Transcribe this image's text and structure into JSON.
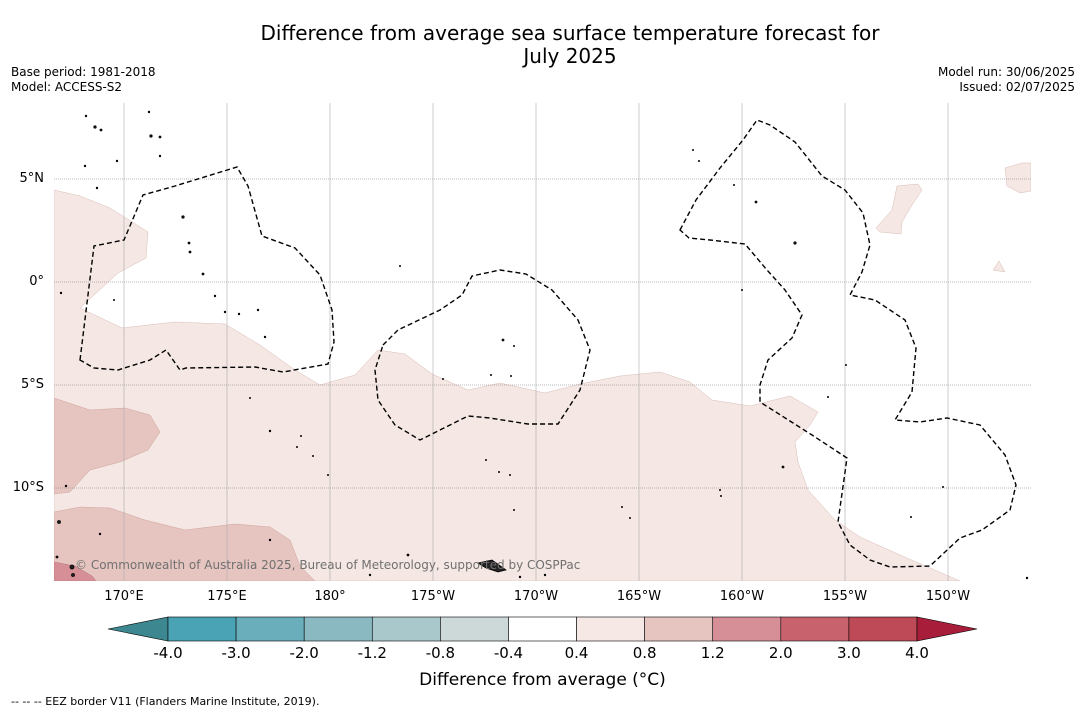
{
  "header": {
    "title_line1": "Difference from average sea surface temperature forecast for",
    "title_line2": "July 2025",
    "base_period": "Base period: 1981-2018",
    "model": "Model: ACCESS-S2",
    "model_run": "Model run: 30/06/2025",
    "issued": "Issued: 02/07/2025"
  },
  "map": {
    "longitude_labels": [
      "170°E",
      "175°E",
      "180°",
      "175°W",
      "170°W",
      "165°W",
      "160°W",
      "155°W",
      "150°W"
    ],
    "latitude_labels": [
      "5°N",
      "0°",
      "5°S",
      "10°S"
    ],
    "copyright": "© Commonwealth of Australia 2025, Bureau of Meteorology, supported by COSPPac"
  },
  "legend": {
    "title": "Difference from average (°C)",
    "tick_labels": [
      "-4.0",
      "-3.0",
      "-2.0",
      "-1.2",
      "-0.8",
      "-0.4",
      "0.4",
      "0.8",
      "1.2",
      "2.0",
      "3.0",
      "4.0"
    ],
    "colors": [
      "#3d8790",
      "#4aa3b4",
      "#6aaebb",
      "#8bb9c2",
      "#a8c8cc",
      "#cdd8d9",
      "#ffffff",
      "#f6e8e5",
      "#e6c5c0",
      "#d68f96",
      "#c8636d",
      "#be4a58",
      "#a81e3a"
    ]
  },
  "footer": {
    "eez_note": "--  --  -- EEZ border V11 (Flanders Marine Institute, 2019)."
  }
}
